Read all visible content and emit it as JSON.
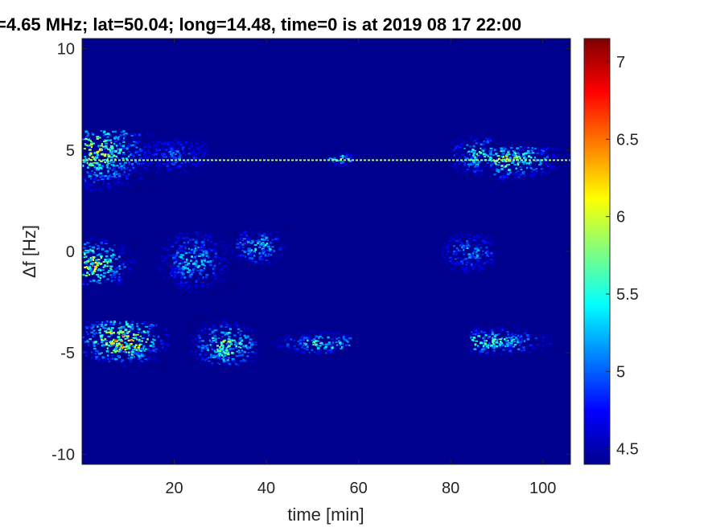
{
  "chart_data": {
    "type": "heatmap",
    "title": "=4.65 MHz;  lat=50.04; long=14.48, time=0 is at 2019 08 17 22:00",
    "xlabel": "time [min]",
    "ylabel": "Δf [Hz]",
    "xlim": [
      0,
      106
    ],
    "ylim": [
      -10.5,
      10.5
    ],
    "x_ticks": [
      20,
      40,
      60,
      80,
      100
    ],
    "y_ticks": [
      10,
      5,
      0,
      -5,
      -10
    ],
    "colorbar": {
      "range": [
        4.4,
        7.15
      ],
      "ticks": [
        4.5,
        5,
        5.5,
        6,
        6.5,
        7
      ],
      "colormap": "jet"
    },
    "background_value": 4.4,
    "grid": false,
    "carrier_line": {
      "y": 4.5,
      "x_start": 0,
      "x_end": 106,
      "value": 5.9
    },
    "signal_regions": [
      {
        "x": [
          0,
          17
        ],
        "y": [
          2.8,
          6.0
        ],
        "peak_x": 2.5,
        "peak_y": 5.0,
        "peak_value": 6.5
      },
      {
        "x": [
          13,
          30
        ],
        "y": [
          3.6,
          5.6
        ],
        "peak_x": 20,
        "peak_y": 4.8,
        "peak_value": 5.3
      },
      {
        "x": [
          52,
          60
        ],
        "y": [
          4.2,
          5.0
        ],
        "peak_x": 56,
        "peak_y": 4.6,
        "peak_value": 6.3
      },
      {
        "x": [
          78,
          89
        ],
        "y": [
          3.6,
          5.8
        ],
        "peak_x": 86,
        "peak_y": 4.8,
        "peak_value": 6.0
      },
      {
        "x": [
          89,
          106
        ],
        "y": [
          3.4,
          5.2
        ],
        "peak_x": 91,
        "peak_y": 4.6,
        "peak_value": 6.4
      },
      {
        "x": [
          0,
          12
        ],
        "y": [
          -1.6,
          0.9
        ],
        "peak_x": 2,
        "peak_y": -0.6,
        "peak_value": 6.7
      },
      {
        "x": [
          15,
          33
        ],
        "y": [
          -2.2,
          1.0
        ],
        "peak_x": 24,
        "peak_y": -0.4,
        "peak_value": 5.8
      },
      {
        "x": [
          32,
          45
        ],
        "y": [
          -0.6,
          1.4
        ],
        "peak_x": 38,
        "peak_y": 0.3,
        "peak_value": 6.0
      },
      {
        "x": [
          76,
          89
        ],
        "y": [
          -1.2,
          1.0
        ],
        "peak_x": 84,
        "peak_y": 0.0,
        "peak_value": 5.6
      },
      {
        "x": [
          0,
          20
        ],
        "y": [
          -5.8,
          -3.4
        ],
        "peak_x": 8.5,
        "peak_y": -4.3,
        "peak_value": 7.1
      },
      {
        "x": [
          22,
          38
        ],
        "y": [
          -5.6,
          -3.2
        ],
        "peak_x": 31,
        "peak_y": -4.6,
        "peak_value": 6.4
      },
      {
        "x": [
          40,
          58
        ],
        "y": [
          -5.0,
          -3.8
        ],
        "peak_x": 52,
        "peak_y": -4.5,
        "peak_value": 6.1
      },
      {
        "x": [
          84,
          104
        ],
        "y": [
          -5.2,
          -3.6
        ],
        "peak_x": 88,
        "peak_y": -4.4,
        "peak_value": 6.2
      }
    ]
  }
}
